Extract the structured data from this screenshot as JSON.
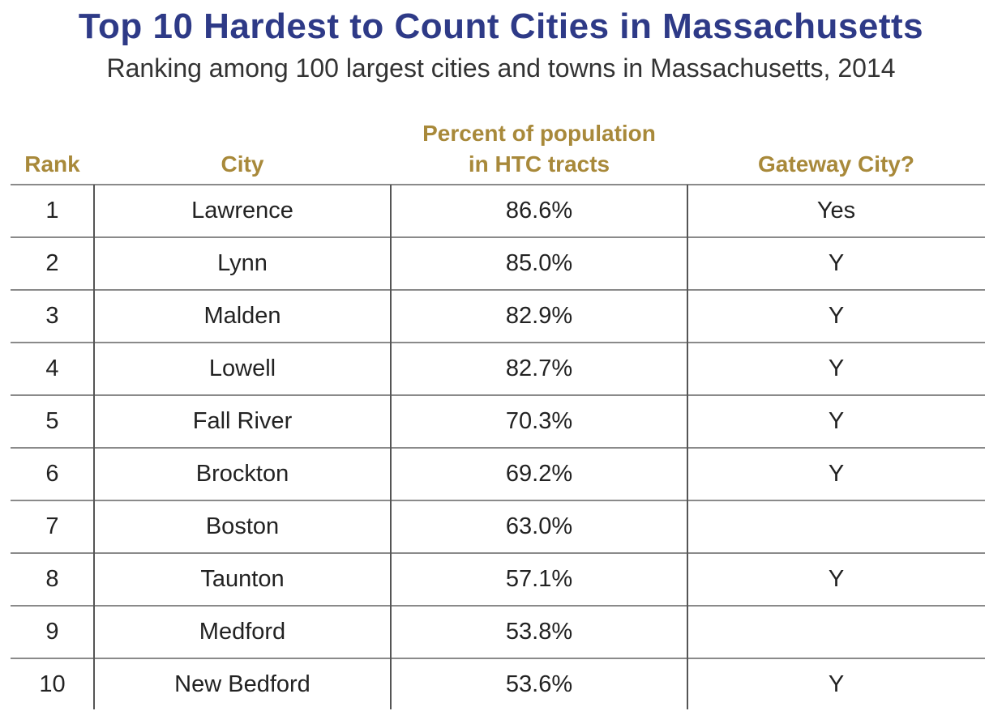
{
  "header": {
    "title": "Top 10 Hardest to Count Cities in Massachusetts",
    "subtitle": "Ranking among 100 largest cities and towns in Massachusetts, 2014"
  },
  "table": {
    "headers": [
      "Rank",
      "City",
      [
        "Percent of population",
        "in HTC tracts"
      ],
      "Gateway City?"
    ],
    "rows": [
      [
        1,
        "Lawrence",
        "86.6%",
        "Yes"
      ],
      [
        2,
        "Lynn",
        "85.0%",
        "Y"
      ],
      [
        3,
        "Malden",
        "82.9%",
        "Y"
      ],
      [
        4,
        "Lowell",
        "82.7%",
        "Y"
      ],
      [
        5,
        "Fall River",
        "70.3%",
        "Y"
      ],
      [
        6,
        "Brockton",
        "69.2%",
        "Y"
      ],
      [
        7,
        "Boston",
        "63.0%",
        null
      ],
      [
        8,
        "Taunton",
        "57.1%",
        "Y"
      ],
      [
        9,
        "Medford",
        "53.8%",
        null
      ],
      [
        10,
        "New Bedford",
        "53.6%",
        "Y"
      ]
    ]
  }
}
